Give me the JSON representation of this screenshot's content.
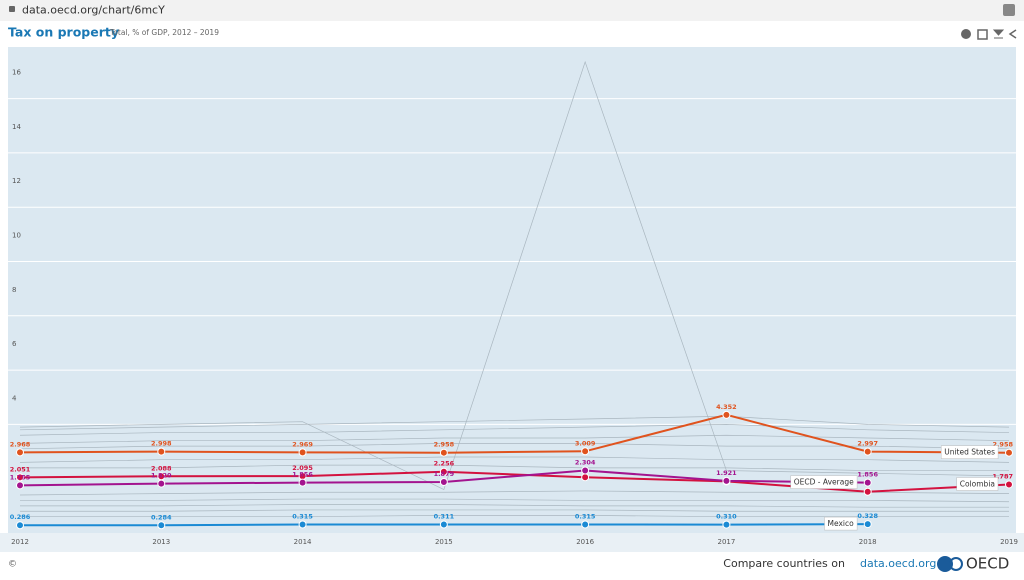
{
  "browser": {
    "url": "data.oecd.org/chart/6mcY"
  },
  "chart_data": {
    "type": "line",
    "title": "Tax on property",
    "subtitle": "Total, % of GDP, 2012 – 2019",
    "categories": [
      "2012",
      "2013",
      "2014",
      "2015",
      "2016",
      "2017",
      "2018",
      "2019"
    ],
    "ylim": [
      0,
      17.9
    ],
    "yticks": [
      4,
      6,
      8,
      10,
      12,
      14,
      16
    ],
    "grid": true,
    "series": [
      {
        "name": "United States",
        "color": "#e0531e",
        "values": [
          2.968,
          2.998,
          2.969,
          2.958,
          3.009,
          4.352,
          2.997,
          2.958
        ],
        "value_labels": [
          "2.968",
          "2.998",
          "2.969",
          "2.958",
          "3.009",
          "4.352",
          "2.997",
          "2.958"
        ]
      },
      {
        "name": "Colombia",
        "color": "#d3123f",
        "values": [
          2.051,
          2.088,
          2.095,
          2.256,
          2.054,
          1.9,
          1.518,
          1.787
        ],
        "value_labels": [
          "2.051",
          "2.088",
          "2.095",
          "2.256",
          null,
          null,
          null,
          "1.787"
        ]
      },
      {
        "name": "OECD - Average",
        "color": "#a3148f",
        "values": [
          1.755,
          1.82,
          1.856,
          1.879,
          2.304,
          1.921,
          1.856,
          null
        ],
        "value_labels": [
          "1.755",
          "1.820",
          "1.856",
          "1.879",
          "2.304",
          "1.921",
          "1.856",
          null
        ]
      },
      {
        "name": "Mexico",
        "color": "#1a8ad4",
        "values": [
          0.286,
          0.284,
          0.315,
          0.311,
          0.315,
          0.31,
          0.328,
          null
        ],
        "value_labels": [
          "0.286",
          "0.284",
          "0.315",
          "0.311",
          "0.315",
          "0.310",
          "0.328",
          null
        ]
      }
    ],
    "other_color": "#a9b6bf",
    "other_series": [
      [
        3.9,
        4.0,
        4.1,
        1.6,
        17.35,
        2.3,
        2.2,
        2.1
      ],
      [
        3.8,
        3.9,
        4.0,
        4.1,
        4.2,
        4.3,
        4.0,
        3.9
      ],
      [
        3.6,
        3.7,
        3.7,
        3.8,
        3.9,
        4.0,
        3.8,
        3.7
      ],
      [
        3.3,
        3.4,
        3.4,
        3.5,
        3.5,
        3.6,
        3.5,
        3.4
      ],
      [
        3.1,
        3.2,
        3.2,
        3.3,
        3.3,
        3.2,
        3.2,
        3.1
      ],
      [
        2.6,
        2.7,
        2.7,
        2.8,
        2.8,
        2.7,
        2.7,
        2.6
      ],
      [
        2.4,
        2.4,
        2.5,
        2.5,
        2.4,
        2.4,
        2.3,
        2.3
      ],
      [
        1.4,
        1.45,
        1.5,
        1.5,
        1.55,
        1.5,
        1.5,
        1.45
      ],
      [
        1.2,
        1.2,
        1.25,
        1.25,
        1.2,
        1.2,
        1.2,
        1.15
      ],
      [
        1.0,
        1.0,
        1.05,
        1.05,
        1.0,
        1.0,
        0.95,
        0.95
      ],
      [
        0.8,
        0.8,
        0.85,
        0.85,
        0.85,
        0.8,
        0.8,
        0.8
      ],
      [
        0.6,
        0.6,
        0.6,
        0.65,
        0.65,
        0.6,
        0.6,
        0.6
      ]
    ]
  },
  "footer": {
    "copyright": "©",
    "compare": "Compare countries on",
    "link": "data.oecd.org",
    "logo": "OECD"
  }
}
